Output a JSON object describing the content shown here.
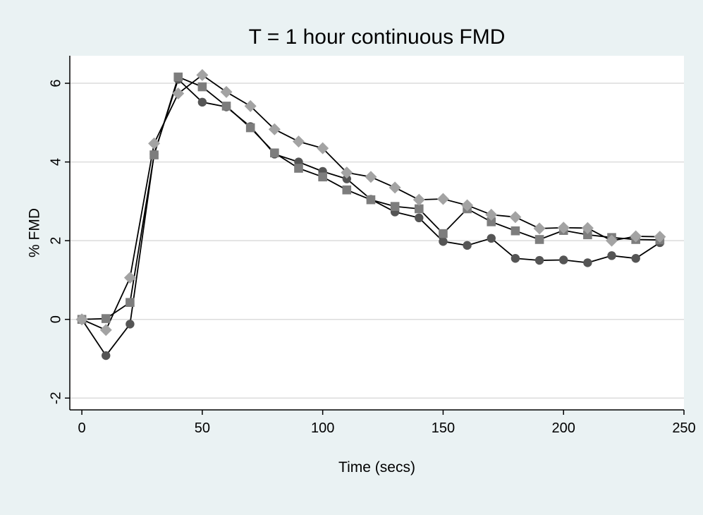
{
  "chart_data": {
    "type": "line",
    "title": "T = 1 hour continuous FMD",
    "xlabel": "Time (secs)",
    "ylabel": "% FMD",
    "xlim": [
      -5,
      250
    ],
    "ylim": [
      -2.3,
      6.7
    ],
    "x_ticks": [
      0,
      50,
      100,
      150,
      200,
      250
    ],
    "y_ticks": [
      -2,
      0,
      2,
      4,
      6
    ],
    "x_tick_labels": [
      "0",
      "50",
      "100",
      "150",
      "200",
      "250"
    ],
    "y_tick_labels": [
      "-2",
      "0",
      "2",
      "4",
      "6"
    ],
    "grid": "horizontal",
    "legend": "none",
    "x": [
      0,
      10,
      20,
      30,
      40,
      50,
      60,
      70,
      80,
      90,
      100,
      110,
      120,
      130,
      140,
      150,
      160,
      170,
      180,
      190,
      200,
      210,
      220,
      230,
      240
    ],
    "series": [
      {
        "marker": "circle",
        "color": "#555555",
        "values": [
          0,
          -0.92,
          -0.12,
          4.2,
          6.1,
          5.52,
          5.4,
          4.9,
          4.2,
          4.0,
          3.76,
          3.57,
          3.05,
          2.73,
          2.58,
          1.98,
          1.88,
          2.06,
          1.55,
          1.5,
          1.51,
          1.44,
          1.62,
          1.55,
          1.95
        ]
      },
      {
        "marker": "square",
        "color": "#7d7d7d",
        "values": [
          0,
          0.02,
          0.43,
          4.18,
          6.16,
          5.91,
          5.42,
          4.87,
          4.23,
          3.84,
          3.62,
          3.29,
          3.04,
          2.87,
          2.81,
          2.18,
          2.81,
          2.48,
          2.25,
          2.03,
          2.26,
          2.15,
          2.08,
          2.03,
          2.02
        ]
      },
      {
        "marker": "diamond",
        "color": "#a3a3a3",
        "values": [
          0,
          -0.27,
          1.06,
          4.47,
          5.74,
          6.21,
          5.78,
          5.42,
          4.83,
          4.52,
          4.35,
          3.73,
          3.62,
          3.35,
          3.04,
          3.06,
          2.9,
          2.66,
          2.6,
          2.31,
          2.33,
          2.32,
          2.0,
          2.11,
          2.1
        ]
      }
    ]
  }
}
